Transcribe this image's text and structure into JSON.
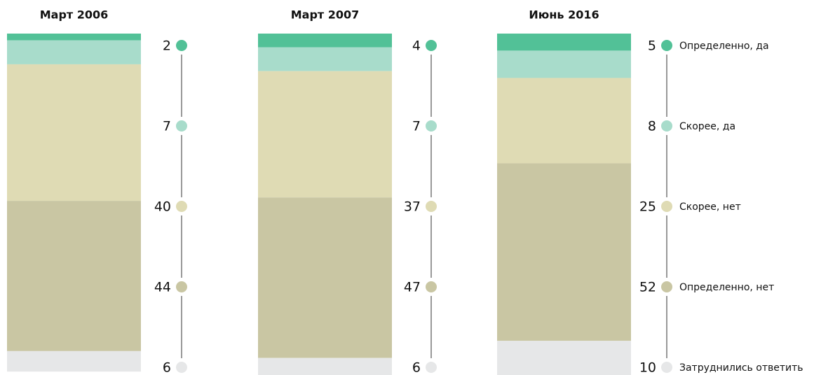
{
  "chart_data": {
    "type": "bar",
    "stacked": true,
    "categories": [
      "Март 2006",
      "Март 2007",
      "Июнь 2016"
    ],
    "series": [
      {
        "name": "Определенно, да",
        "color": "#52c197",
        "values": [
          2,
          4,
          5
        ]
      },
      {
        "name": "Скорее, да",
        "color": "#a8dccb",
        "values": [
          7,
          7,
          8
        ]
      },
      {
        "name": "Скорее, нет",
        "color": "#dfdbb4",
        "values": [
          40,
          37,
          25
        ]
      },
      {
        "name": "Определенно, нет",
        "color": "#c9c6a3",
        "values": [
          44,
          47,
          52
        ]
      },
      {
        "name": "Затруднились ответить",
        "color": "#e6e7e8",
        "values": [
          6,
          6,
          10
        ]
      }
    ],
    "ylim": [
      0,
      100
    ]
  }
}
